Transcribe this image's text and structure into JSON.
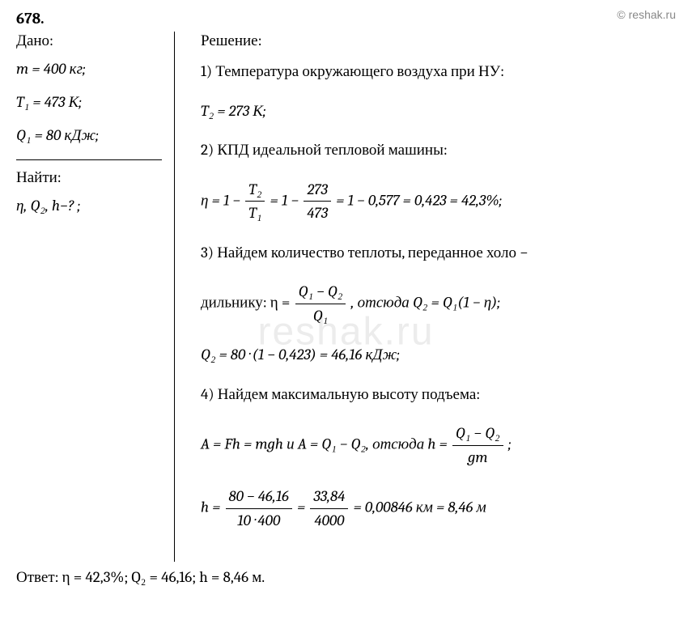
{
  "watermark_top": "© reshak.ru",
  "watermark_center": "reshak.ru",
  "problem_number": "678.",
  "given": {
    "label": "Дано:",
    "m": "m = 400 кг;",
    "T1": "T₁ = 473 К;",
    "Q1": "Q₁ = 80 кДж;"
  },
  "find": {
    "label": "Найти:",
    "vars": "η, Q₂, h−? ;"
  },
  "solution": {
    "label": "Решение:",
    "step1_text": "1) Температура окружающего воздуха при НУ:",
    "step1_eq": "T₂ = 273 К;",
    "step2_text": "2) КПД идеальной тепловой машины:",
    "eta_prefix": "η = 1 −",
    "eta_frac1_num": "T₂",
    "eta_frac1_den": "T₁",
    "eta_mid1": "= 1 −",
    "eta_frac2_num": "273",
    "eta_frac2_den": "473",
    "eta_result": "= 1 − 0,577 = 0,423 = 42,3%;",
    "step3_text1": "3) Найдем количество теплоты, переданное холо −",
    "step3_text2": "дильнику: η =",
    "q_frac_num": "Q₁ − Q₂",
    "q_frac_den": "Q₁",
    "step3_text3": " , отсюда Q₂ = Q₁(1 − η);",
    "q2_calc": "Q₂ = 80 · (1 − 0,423) = 46,16 кДж;",
    "step4_text": "4) Найдем максимальную высоту подъема:",
    "step4_eq1": "A = Fh = mgh и A = Q₁ − Q₂, отсюда h =",
    "h_frac1_num": "Q₁ − Q₂",
    "h_frac1_den": "gm",
    "h_semicolon": " ;",
    "h_prefix": "h =",
    "h_frac2_num": "80 − 46,16",
    "h_frac2_den": "10 · 400",
    "h_eq": "=",
    "h_frac3_num": "33,84",
    "h_frac3_den": "4000",
    "h_result": "= 0,00846 км = 8,46 м"
  },
  "answer": "Ответ: η = 42,3%; Q₂ = 46,16; h = 8,46 м."
}
